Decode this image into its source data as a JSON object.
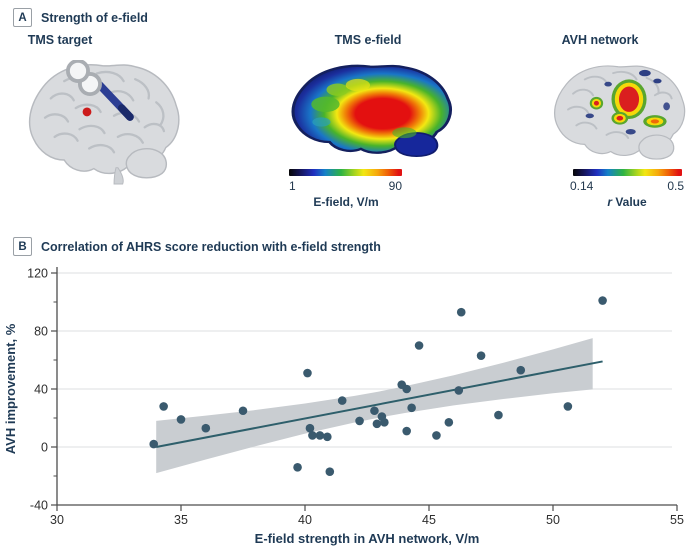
{
  "colors": {
    "accent_navy": "#1f3a55",
    "tick_text": "#2e2e2e",
    "axis_line": "#4d4d4d",
    "gridline": "#e4e5e7",
    "scatter_dot": "#3a5a6e",
    "regression_line": "#2e5f6b",
    "confidence_band": "#c9cdd1",
    "coil_blue": "#2c3e94",
    "target_red": "#cc1b1b",
    "brain_gray": "#d9dbde",
    "heat_gradient": [
      "#060606",
      "#15155a",
      "#2030c0",
      "#1581c8",
      "#2eb344",
      "#a6d41f",
      "#f2e713",
      "#f6a90c",
      "#ef5d07",
      "#e11212"
    ]
  },
  "panel_a": {
    "label": "A",
    "title": "Strength of e-field",
    "columns": [
      {
        "name": "TMS target"
      },
      {
        "name": "TMS e-field",
        "colorbar": {
          "min": "1",
          "max": "90",
          "caption": "E-field, V/m"
        }
      },
      {
        "name": "AVH network",
        "colorbar": {
          "min": "0.14",
          "max": "0.5",
          "caption_italic": "r",
          "caption": " Value"
        }
      }
    ]
  },
  "panel_b": {
    "label": "B",
    "title": "Correlation of AHRS score reduction with e-field strength"
  },
  "chart_data": {
    "type": "scatter",
    "title": "Correlation of AHRS score reduction with e-field strength",
    "xlabel": "E-field strength in AVH network, V/m",
    "ylabel": "AVH improvement, %",
    "xlim": [
      30,
      55
    ],
    "ylim": [
      -40,
      120
    ],
    "xticks": [
      30,
      35,
      40,
      45,
      50,
      55
    ],
    "yticks": [
      -40,
      0,
      40,
      80,
      120
    ],
    "y_minor_ticks": [
      -20,
      20,
      60,
      100
    ],
    "grid": "horizontal gridlines at y = 0, 40, 80, 120",
    "legend": "none",
    "points": [
      [
        33.9,
        2
      ],
      [
        34.3,
        28
      ],
      [
        35.0,
        19
      ],
      [
        36.0,
        13
      ],
      [
        37.5,
        25
      ],
      [
        39.7,
        -14
      ],
      [
        40.1,
        51
      ],
      [
        40.2,
        13
      ],
      [
        40.3,
        8
      ],
      [
        40.6,
        8
      ],
      [
        40.9,
        7
      ],
      [
        41.0,
        -17
      ],
      [
        41.5,
        32
      ],
      [
        42.2,
        18
      ],
      [
        42.8,
        25
      ],
      [
        42.9,
        16
      ],
      [
        43.1,
        21
      ],
      [
        43.2,
        17
      ],
      [
        43.9,
        43
      ],
      [
        44.1,
        40
      ],
      [
        44.1,
        11
      ],
      [
        44.3,
        27
      ],
      [
        44.6,
        70
      ],
      [
        45.3,
        8
      ],
      [
        45.8,
        17
      ],
      [
        46.2,
        39
      ],
      [
        46.3,
        93
      ],
      [
        47.1,
        63
      ],
      [
        47.8,
        22
      ],
      [
        48.7,
        53
      ],
      [
        50.6,
        28
      ],
      [
        52.0,
        101
      ]
    ],
    "regression_line": {
      "x": [
        34.0,
        52.0
      ],
      "y": [
        0,
        59
      ]
    },
    "confidence_band": {
      "x": [
        34,
        36,
        38,
        40,
        42,
        43,
        44,
        46,
        48,
        50,
        51.6
      ],
      "upper": [
        18,
        21.6,
        25.5,
        30,
        35.3,
        38.3,
        41.8,
        49.5,
        58.1,
        67.3,
        75.1
      ],
      "lower": [
        -18,
        -8.6,
        0.5,
        9.2,
        16.9,
        20.3,
        23.4,
        28.7,
        33.1,
        37.1,
        39.7
      ]
    }
  }
}
